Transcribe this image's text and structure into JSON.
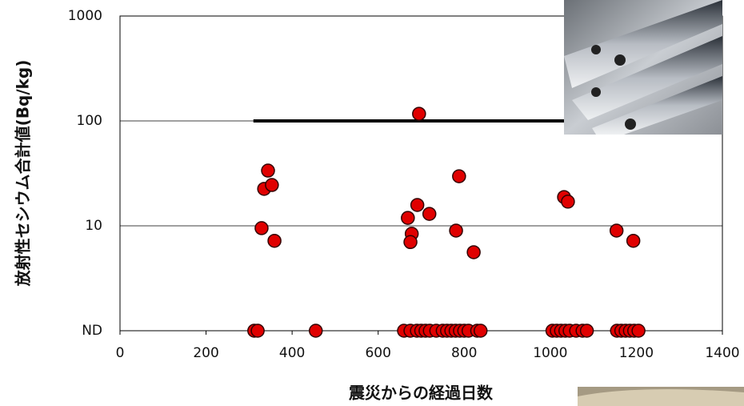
{
  "chart_data": {
    "type": "scatter",
    "y_label": "放射性セシウム合計値(Bq/kg)",
    "x_label": "震災からの経過日数",
    "log_y": true,
    "grid": true,
    "xlim": [
      0,
      1400
    ],
    "xticks": [
      0,
      200,
      400,
      600,
      800,
      1000,
      1200,
      1400
    ],
    "ylim": [
      1,
      1000
    ],
    "yticks": [
      {
        "value": 1,
        "label": "ND"
      },
      10,
      100,
      1000
    ],
    "reference_line": {
      "value": 100,
      "x_start": 310,
      "color": "#000000"
    },
    "series": [
      {
        "color": "#e00000",
        "x": [
          312,
          320,
          455,
          660,
          675,
          690,
          700,
          710,
          720,
          735,
          750,
          760,
          770,
          780,
          790,
          800,
          810,
          830,
          838,
          1005,
          1015,
          1025,
          1035,
          1045,
          1060,
          1075,
          1085,
          1155,
          1165,
          1175,
          1185,
          1195,
          1205,
          329,
          335,
          344,
          353,
          359,
          695,
          669,
          678,
          675,
          691,
          719,
          781,
          788,
          822,
          1032,
          1041,
          1154,
          1193
        ],
        "values": [
          1,
          1,
          1,
          1,
          1,
          1,
          1,
          1,
          1,
          1,
          1,
          1,
          1,
          1,
          1,
          1,
          1,
          1,
          1,
          1,
          1,
          1,
          1,
          1,
          1,
          1,
          1,
          1,
          1,
          1,
          1,
          1,
          1,
          9.5,
          22.5,
          33.6,
          24.5,
          7.2,
          117,
          11.9,
          8.4,
          7.0,
          15.8,
          13,
          9.0,
          29.7,
          5.6,
          18.8,
          17,
          9.0,
          7.2
        ]
      }
    ]
  }
}
